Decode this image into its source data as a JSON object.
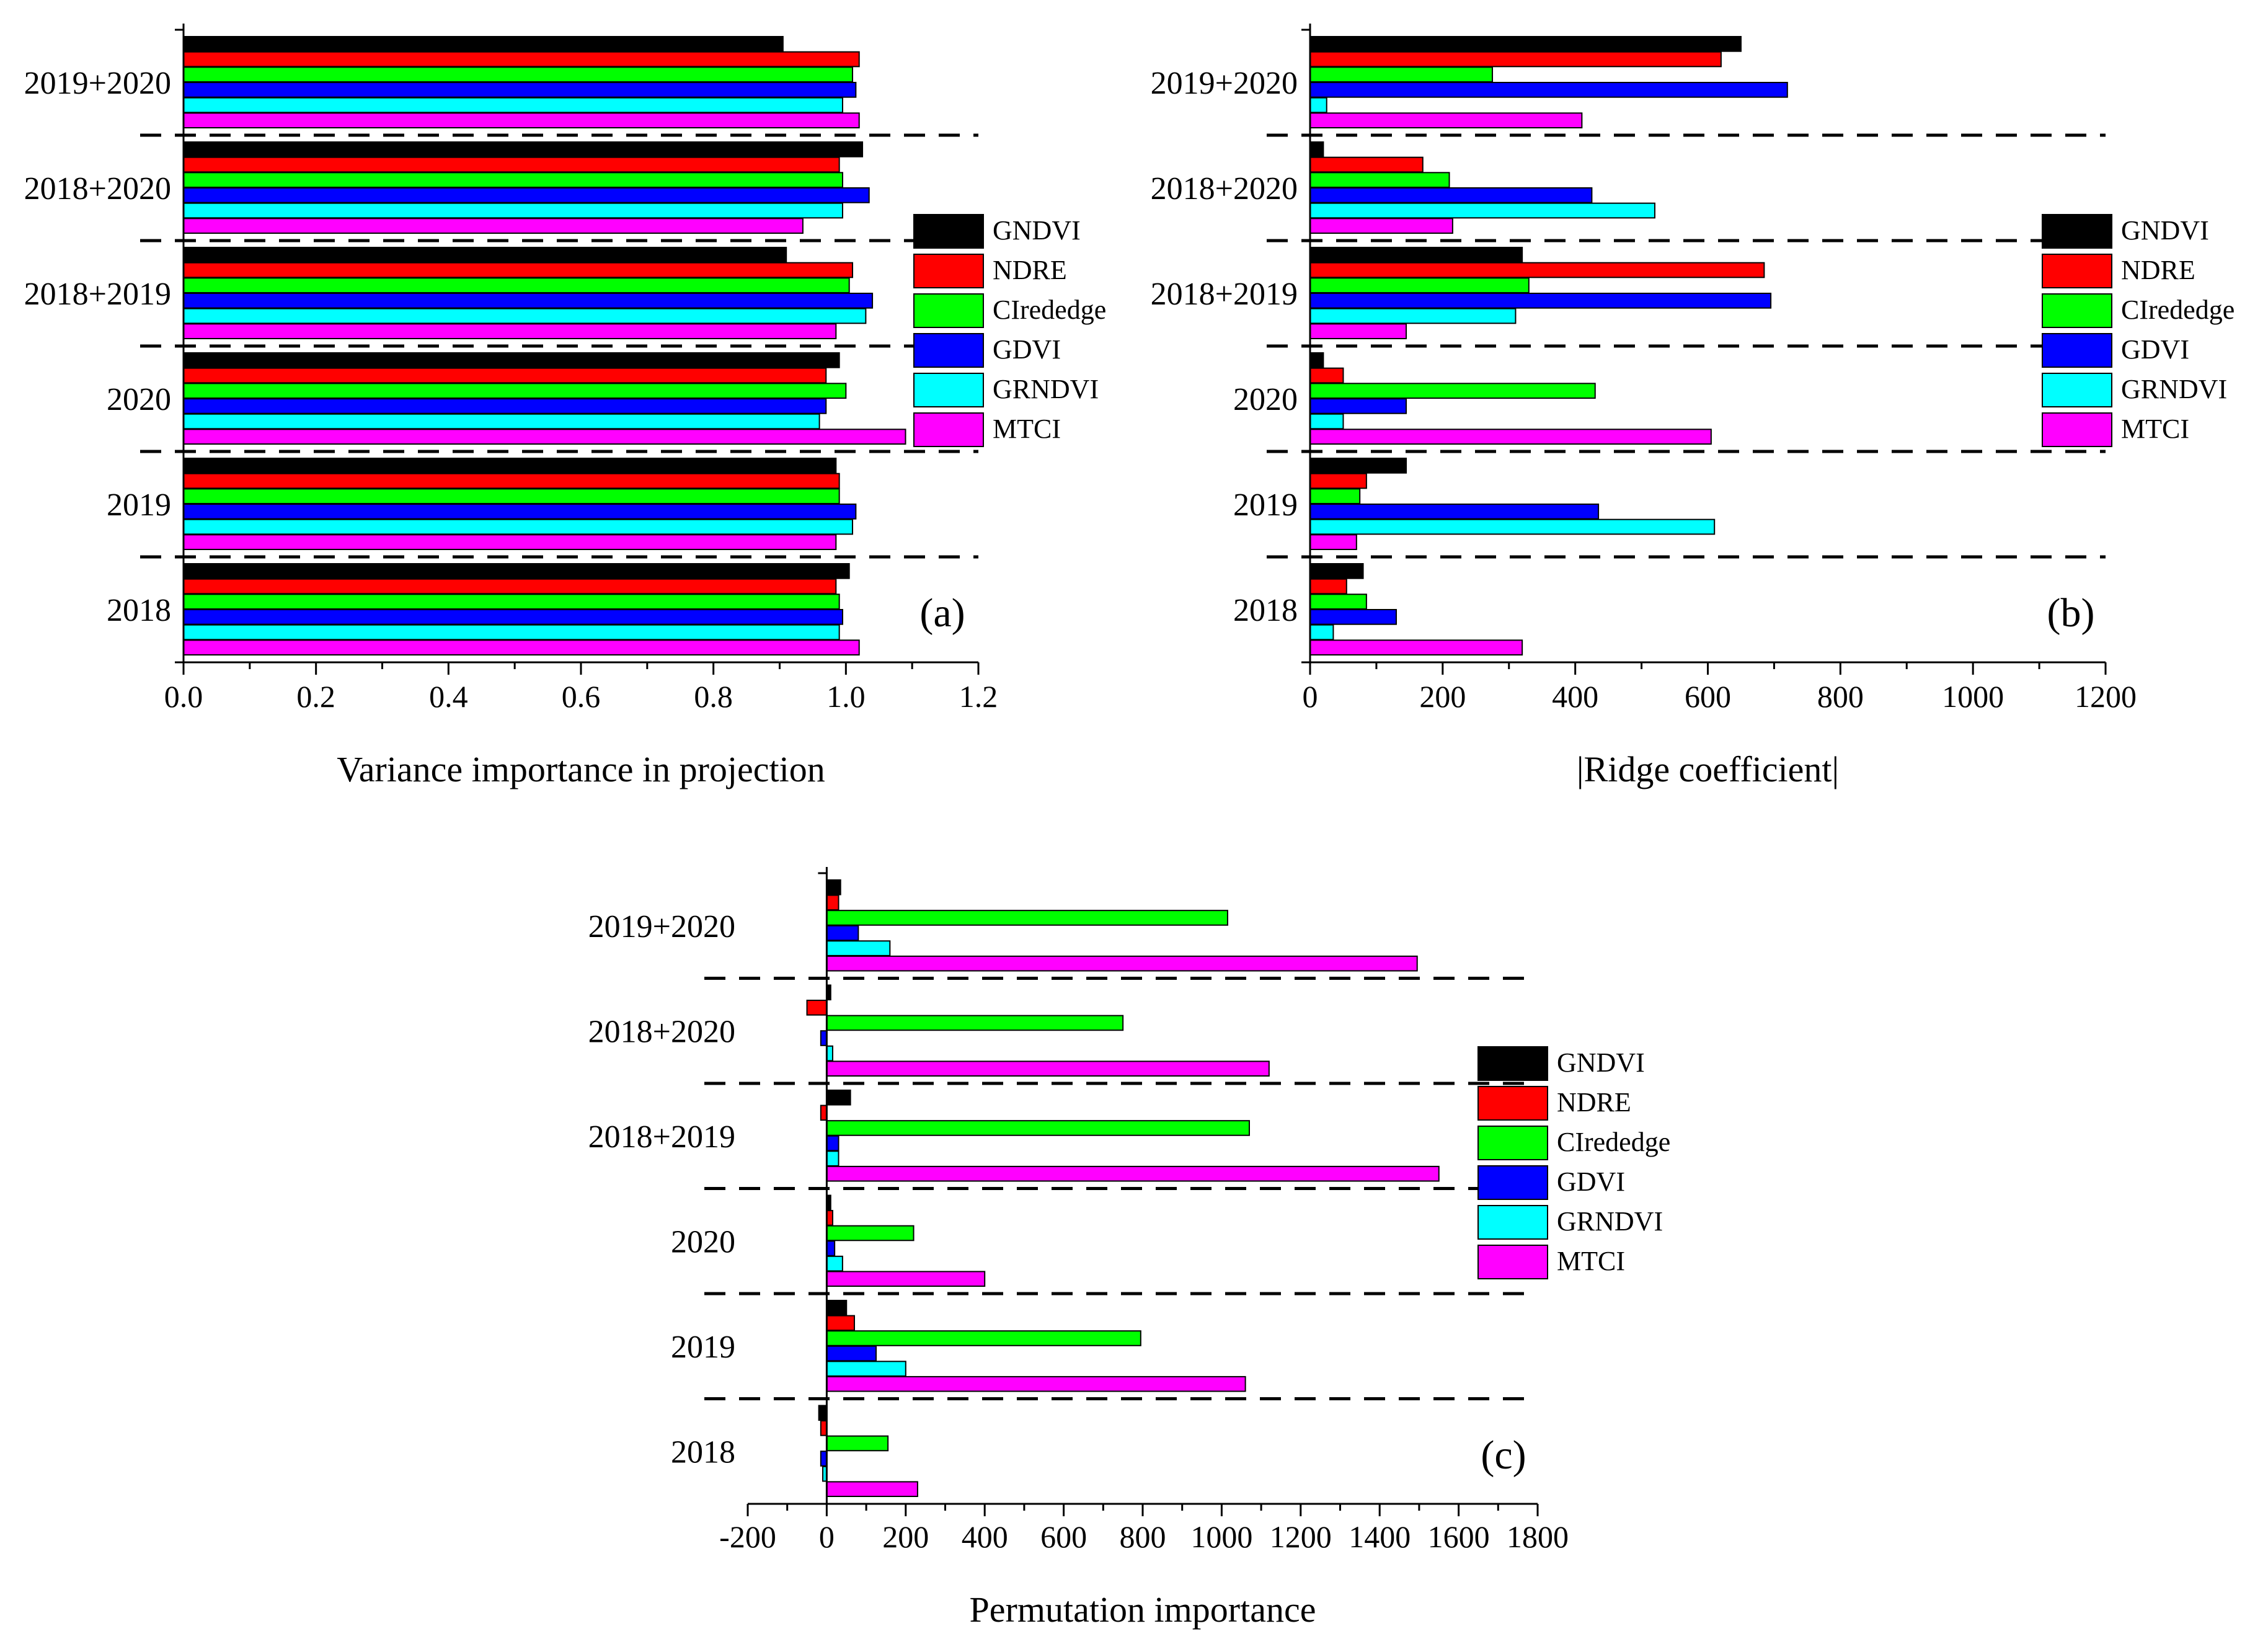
{
  "series_colors": {
    "GNDVI": "#000000",
    "NDRE": "#ff0000",
    "CIrededge": "#00ff00",
    "GDVI": "#0000ff",
    "GRNDVI": "#00ffff",
    "MTCI": "#ff00ff"
  },
  "chart_data": [
    {
      "type": "bar",
      "orientation": "horizontal",
      "panel": "(a)",
      "xlabel": "Variance importance in projection",
      "xlim": [
        0.0,
        1.2
      ],
      "xticks": [
        "0.0",
        "0.2",
        "0.4",
        "0.6",
        "0.8",
        "1.0",
        "1.2"
      ],
      "categories": [
        "2019+2020",
        "2018+2020",
        "2018+2019",
        "2020",
        "2019",
        "2018"
      ],
      "legend": [
        "GNDVI",
        "NDRE",
        "CIrededge",
        "GDVI",
        "GRNDVI",
        "MTCI"
      ],
      "legend_position": "right",
      "series": [
        {
          "name": "GNDVI",
          "values": [
            0.905,
            1.025,
            0.91,
            0.99,
            0.985,
            1.005
          ]
        },
        {
          "name": "NDRE",
          "values": [
            1.02,
            0.99,
            1.01,
            0.97,
            0.99,
            0.985
          ]
        },
        {
          "name": "CIrededge",
          "values": [
            1.01,
            0.995,
            1.005,
            1.0,
            0.99,
            0.99
          ]
        },
        {
          "name": "GDVI",
          "values": [
            1.015,
            1.035,
            1.04,
            0.97,
            1.015,
            0.995
          ]
        },
        {
          "name": "GRNDVI",
          "values": [
            0.995,
            0.995,
            1.03,
            0.96,
            1.01,
            0.99
          ]
        },
        {
          "name": "MTCI",
          "values": [
            1.02,
            0.935,
            0.985,
            1.09,
            0.985,
            1.02
          ]
        }
      ]
    },
    {
      "type": "bar",
      "orientation": "horizontal",
      "panel": "(b)",
      "xlabel": "|Ridge coefficient|",
      "xlim": [
        0,
        1200
      ],
      "xticks": [
        "0",
        "200",
        "400",
        "600",
        "800",
        "1000",
        "1200"
      ],
      "categories": [
        "2019+2020",
        "2018+2020",
        "2018+2019",
        "2020",
        "2019",
        "2018"
      ],
      "legend": [
        "GNDVI",
        "NDRE",
        "CIrededge",
        "GDVI",
        "GRNDVI",
        "MTCI"
      ],
      "legend_position": "right",
      "series": [
        {
          "name": "GNDVI",
          "values": [
            650,
            20,
            320,
            20,
            145,
            80
          ]
        },
        {
          "name": "NDRE",
          "values": [
            620,
            170,
            685,
            50,
            85,
            55
          ]
        },
        {
          "name": "CIrededge",
          "values": [
            275,
            210,
            330,
            430,
            75,
            85
          ]
        },
        {
          "name": "GDVI",
          "values": [
            720,
            425,
            695,
            145,
            435,
            130
          ]
        },
        {
          "name": "GRNDVI",
          "values": [
            25,
            520,
            310,
            50,
            610,
            35
          ]
        },
        {
          "name": "MTCI",
          "values": [
            410,
            215,
            145,
            605,
            70,
            320
          ]
        }
      ]
    },
    {
      "type": "bar",
      "orientation": "horizontal",
      "panel": "(c)",
      "xlabel": "Permutation importance",
      "xlim": [
        -200,
        1800
      ],
      "xticks": [
        "-200",
        "0",
        "200",
        "400",
        "600",
        "800",
        "1000",
        "1200",
        "1400",
        "1600",
        "1800"
      ],
      "categories": [
        "2019+2020",
        "2018+2020",
        "2018+2019",
        "2020",
        "2019",
        "2018"
      ],
      "legend": [
        "GNDVI",
        "NDRE",
        "CIrededge",
        "GDVI",
        "GRNDVI",
        "MTCI"
      ],
      "legend_position": "right",
      "series": [
        {
          "name": "GNDVI",
          "values": [
            35,
            10,
            60,
            10,
            50,
            -20
          ]
        },
        {
          "name": "NDRE",
          "values": [
            30,
            -50,
            -15,
            15,
            70,
            -15
          ]
        },
        {
          "name": "CIrededge",
          "values": [
            1015,
            750,
            1070,
            220,
            795,
            155
          ]
        },
        {
          "name": "GDVI",
          "values": [
            80,
            -15,
            30,
            20,
            125,
            -15
          ]
        },
        {
          "name": "GRNDVI",
          "values": [
            160,
            15,
            30,
            40,
            200,
            -10
          ]
        },
        {
          "name": "MTCI",
          "values": [
            1495,
            1120,
            1550,
            400,
            1060,
            230
          ]
        }
      ]
    }
  ]
}
